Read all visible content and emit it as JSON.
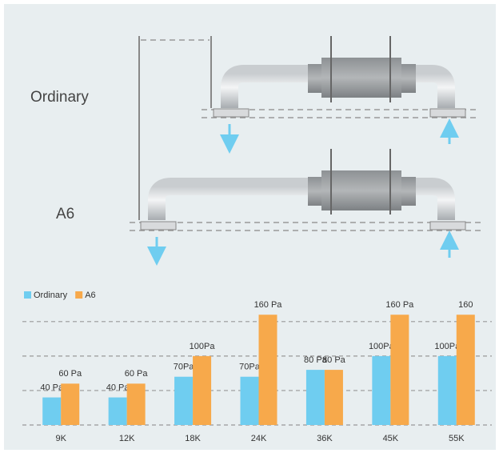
{
  "diagram": {
    "labels": [
      "Ordinary",
      "A6"
    ]
  },
  "chart_data": {
    "type": "bar",
    "categories": [
      "9K",
      "12K",
      "18K",
      "24K",
      "36K",
      "45K",
      "55K"
    ],
    "series": [
      {
        "name": "Ordinary",
        "color": "#6fcdf0",
        "values": [
          40,
          40,
          70,
          70,
          80,
          100,
          100
        ],
        "value_labels": [
          "40 Pa",
          "40 Pa",
          "70Pa",
          "70Pa",
          "80 Pa",
          "100Pa",
          "100Pa"
        ]
      },
      {
        "name": "A6",
        "color": "#f7a94b",
        "values": [
          60,
          60,
          100,
          160,
          80,
          160,
          160
        ],
        "value_labels": [
          "60 Pa",
          "60 Pa",
          "100Pa",
          "160 Pa",
          "80 Pa",
          "160 Pa",
          "160"
        ]
      }
    ],
    "ylim": [
      0,
      180
    ],
    "yticks": [
      0,
      50,
      100,
      150
    ],
    "grid": true
  }
}
